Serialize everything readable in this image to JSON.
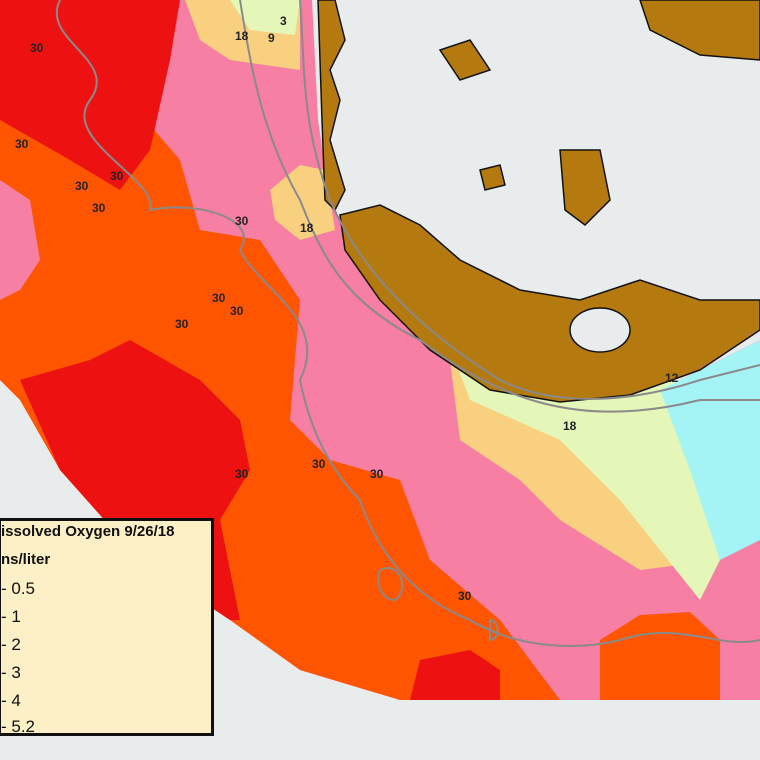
{
  "legend": {
    "title": "issolved Oxygen 9/26/18",
    "units": "ns/liter",
    "items": [
      {
        "label": "- 0.5",
        "color": "#ee1111"
      },
      {
        "label": "- 1",
        "color": "#ff5500"
      },
      {
        "label": "- 2",
        "color": "#f77fa3"
      },
      {
        "label": "- 3",
        "color": "#f8d080"
      },
      {
        "label": "- 4",
        "color": "#e4f6b8"
      },
      {
        "label": "- 5.2",
        "color": "#a4f4f6"
      }
    ]
  },
  "contour_labels": [
    "30",
    "30",
    "30",
    "30",
    "30",
    "30",
    "30",
    "30",
    "30",
    "30",
    "30",
    "30",
    "30",
    "18",
    "18",
    "18",
    "3",
    "9",
    "12"
  ],
  "colors": {
    "land": "#b47a10",
    "water": "#e9ecec",
    "contour": "#8a8a8a"
  }
}
